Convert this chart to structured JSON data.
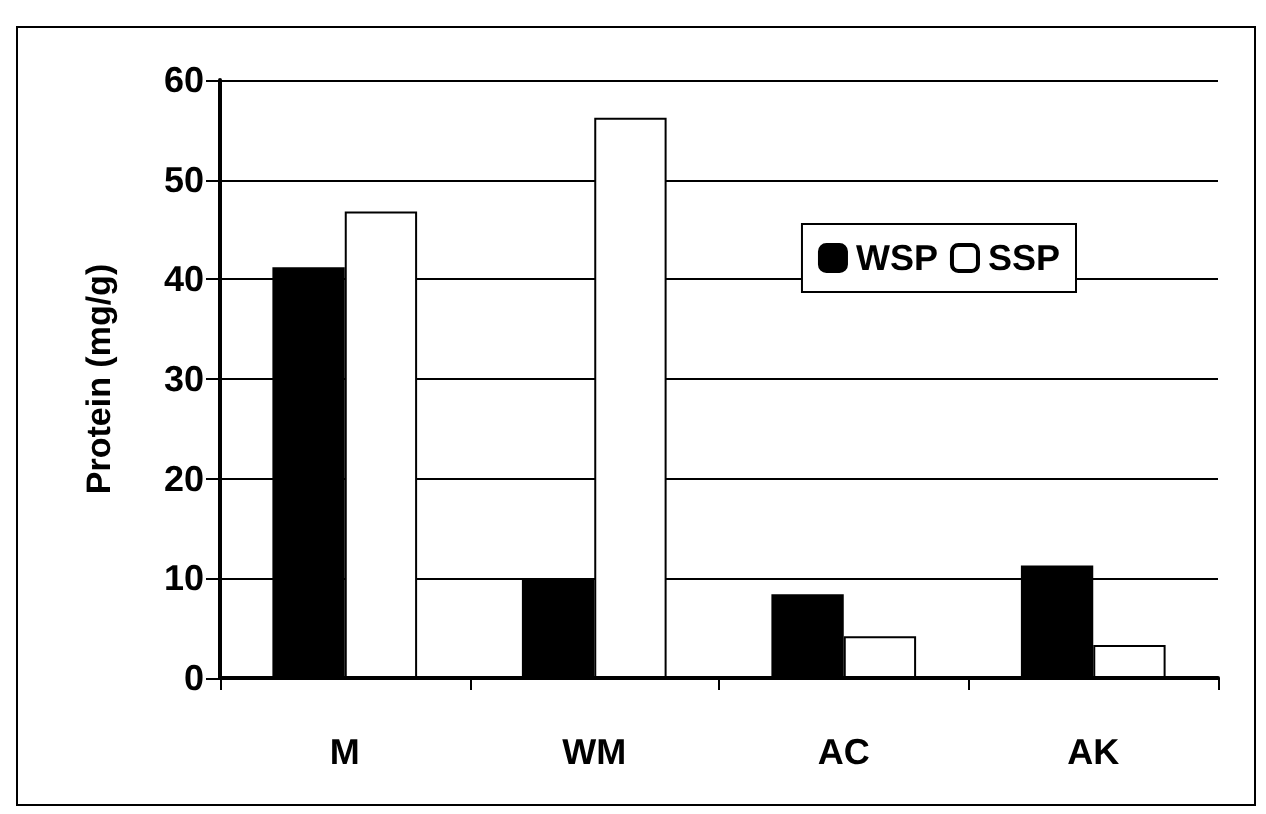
{
  "chart_data": {
    "type": "bar",
    "ylabel": "Protein (mg/g)",
    "categories": [
      "M",
      "WM",
      "AC",
      "AK"
    ],
    "series": [
      {
        "name": "WSP",
        "color": "#000000",
        "values": [
          41.2,
          10.0,
          8.4,
          11.3
        ]
      },
      {
        "name": "SSP",
        "color": "#ffffff",
        "values": [
          46.8,
          56.2,
          4.2,
          3.3
        ]
      }
    ],
    "ylim": [
      0,
      60
    ],
    "yticks": [
      0,
      10,
      20,
      30,
      40,
      50,
      60
    ],
    "grid": "y",
    "legend": "top right"
  }
}
